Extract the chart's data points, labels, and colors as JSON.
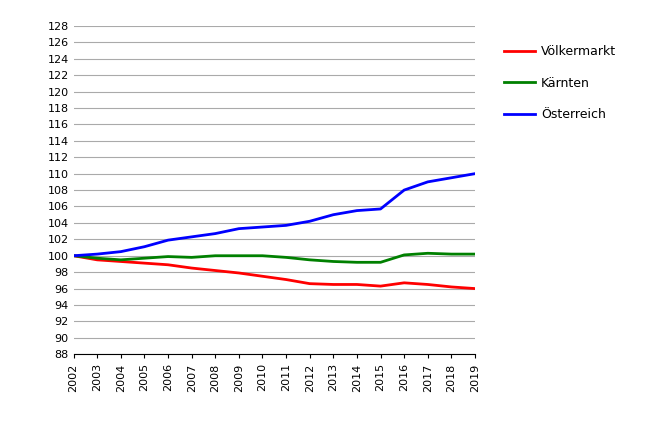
{
  "years": [
    2002,
    2003,
    2004,
    2005,
    2006,
    2007,
    2008,
    2009,
    2010,
    2011,
    2012,
    2013,
    2014,
    2015,
    2016,
    2017,
    2018,
    2019
  ],
  "voelkermarkt": [
    100,
    99.5,
    99.3,
    99.1,
    98.9,
    98.5,
    98.2,
    97.9,
    97.5,
    97.1,
    96.6,
    96.5,
    96.5,
    96.3,
    96.7,
    96.5,
    96.2,
    96.0
  ],
  "kaernten": [
    100,
    99.7,
    99.5,
    99.7,
    99.9,
    99.8,
    100.0,
    100.0,
    100.0,
    99.8,
    99.5,
    99.3,
    99.2,
    99.2,
    100.1,
    100.3,
    100.2,
    100.2
  ],
  "oesterreich": [
    100,
    100.2,
    100.5,
    101.1,
    101.9,
    102.3,
    102.7,
    103.3,
    103.5,
    103.7,
    104.2,
    105.0,
    105.5,
    105.7,
    108.0,
    109.0,
    109.5,
    110.0
  ],
  "voelkermarkt_color": "#FF0000",
  "kaernten_color": "#008000",
  "oesterreich_color": "#0000FF",
  "ylim_min": 88,
  "ylim_max": 128,
  "ytick_step": 2,
  "legend_labels": [
    "Völkermarkt",
    "Kärnten",
    "Österreich"
  ],
  "line_width": 2.0,
  "background_color": "#FFFFFF",
  "grid_color": "#AAAAAA",
  "font_size_ticks": 8,
  "font_size_legend": 9
}
